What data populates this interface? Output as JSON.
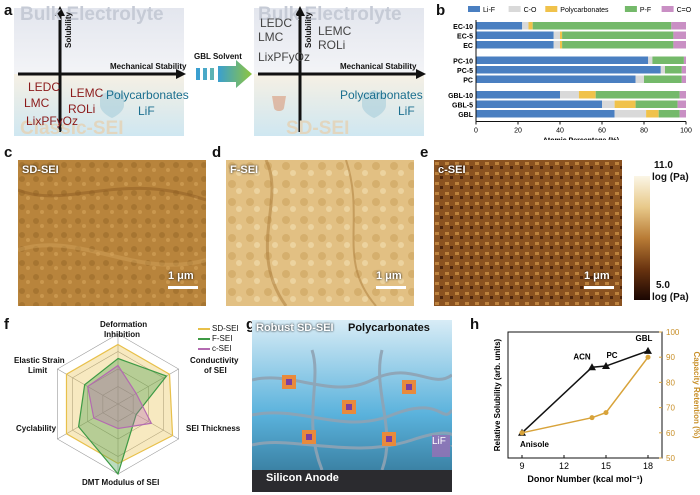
{
  "panel_a": {
    "label": "a",
    "left": {
      "bulk_title": "Bulk Electrolyte",
      "classic_title": "Classic-SEI",
      "y_axis": "Solubility",
      "x_axis": "Mechanical Stability",
      "species_1": "LEDC",
      "species_2": "LEMC",
      "species_3": "LMC",
      "species_4": "ROLi",
      "species_5": "LixPFyOz",
      "species_6": "Polycarbonates",
      "species_7": "LiF"
    },
    "arrow_label": "GBL Solvent",
    "right": {
      "bulk_title": "Bulk Electrolyte",
      "sd_title": "SD-SEI",
      "y_axis": "Solubility",
      "x_axis": "Mechanical Stability",
      "species_1": "LEDC",
      "species_2": "LEMC",
      "species_3": "LMC",
      "species_4": "ROLi",
      "species_5": "LixPFyOz",
      "species_6": "Polycarbonates",
      "species_7": "LiF"
    }
  },
  "panel_b": {
    "label": "b",
    "legend": [
      "Li-F",
      "C-O",
      "Polycarbonates",
      "P-F",
      "C=O"
    ],
    "xlabel": "Atomic Percentage (%)",
    "xticks": [
      "0",
      "20",
      "40",
      "60",
      "80",
      "100"
    ],
    "colors": {
      "Li-F": "#4a7fc1",
      "C-O": "#d9d9d9",
      "Polycarbonates": "#f0c24b",
      "P-F": "#74b96a",
      "C=O": "#c98fc4"
    }
  },
  "panel_c": {
    "label": "c",
    "tag": "SD-SEI",
    "scale": "1 μm"
  },
  "panel_d": {
    "label": "d",
    "tag": "F-SEI",
    "scale": "1 μm"
  },
  "panel_e": {
    "label": "e",
    "tag": "c-SEI",
    "scale": "1 μm"
  },
  "colorbar": {
    "top_value": "11.0",
    "top_unit": "log (Pa)",
    "bottom_value": "5.0",
    "bottom_unit": "log (Pa)"
  },
  "panel_f": {
    "label": "f",
    "axes": [
      "Deformation",
      "Inhibition",
      "Conductivity",
      "of SEI",
      "SEI Thickness",
      "DMT Modulus of SEI",
      "Cyclability",
      "Elastic Strain",
      "Limit"
    ],
    "legend": [
      "SD-SEI",
      "F-SEI",
      "c-SEI"
    ]
  },
  "panel_g": {
    "label": "g",
    "robust": "Robust SD-SEI",
    "polycarbonates": "Polycarbonates",
    "lif": "LiF",
    "anode": "Silicon Anode"
  },
  "panel_h": {
    "label": "h",
    "xlabel": "Donor Number (kcal mol⁻¹)",
    "ylabel_left": "Relative Solubility (arb. units)",
    "ylabel_right": "Capacity Retention (%)",
    "xticks": [
      "9",
      "12",
      "15",
      "18"
    ],
    "yticks_right": [
      "50",
      "60",
      "70",
      "80",
      "90",
      "100"
    ],
    "points": [
      "Anisole",
      "ACN",
      "PC",
      "GBL"
    ]
  },
  "chart_data": [
    {
      "type": "bar",
      "orientation": "horizontal-stacked",
      "categories": [
        "EC-10",
        "EC-5",
        "EC",
        "PC-10",
        "PC-5",
        "PC",
        "GBL-10",
        "GBL-5",
        "GBL"
      ],
      "series": [
        {
          "name": "Li-F",
          "values": [
            22,
            37,
            37,
            82,
            88,
            76,
            40,
            60,
            66
          ]
        },
        {
          "name": "C-O",
          "values": [
            3,
            3,
            3,
            2,
            2,
            4,
            9,
            6,
            15
          ]
        },
        {
          "name": "Polycarbonates",
          "values": [
            2,
            1,
            1,
            0,
            0,
            0,
            8,
            10,
            6
          ]
        },
        {
          "name": "P-F",
          "values": [
            66,
            53,
            53,
            15,
            8,
            18,
            40,
            20,
            10
          ]
        },
        {
          "name": "C=O",
          "values": [
            7,
            6,
            6,
            1,
            2,
            2,
            3,
            4,
            3
          ]
        }
      ],
      "xlabel": "Atomic Percentage (%)",
      "xlim": [
        0,
        100
      ]
    },
    {
      "type": "line",
      "x": [
        9,
        14,
        15,
        18
      ],
      "series": [
        {
          "name": "Relative Solubility",
          "values": [
            0.2,
            0.72,
            0.73,
            0.85
          ],
          "color": "#111111"
        },
        {
          "name": "Capacity Retention",
          "values": [
            60,
            66,
            68,
            90
          ],
          "color": "#d8a33a"
        }
      ],
      "xlabel": "Donor Number (kcal mol⁻¹)",
      "ylabel": "Relative Solubility (arb. units)",
      "y2label": "Capacity Retention (%)",
      "xlim": [
        8,
        19
      ],
      "y2lim": [
        50,
        100
      ]
    },
    {
      "type": "radar",
      "axes": [
        "Deformation Inhibition",
        "Conductivity of SEI",
        "SEI Thickness",
        "DMT Modulus of SEI",
        "Cyclability",
        "Elastic Strain Limit"
      ],
      "series": [
        {
          "name": "SD-SEI",
          "values": [
            0.85,
            0.85,
            0.9,
            0.85,
            0.85,
            0.85
          ],
          "color": "#e8c04a"
        },
        {
          "name": "F-SEI",
          "values": [
            0.65,
            0.8,
            0.3,
            1.0,
            0.65,
            0.55
          ],
          "color": "#3d9a45"
        },
        {
          "name": "c-SEI",
          "values": [
            0.55,
            0.3,
            0.55,
            0.35,
            0.4,
            0.5
          ],
          "color": "#b46ab1"
        }
      ]
    }
  ]
}
